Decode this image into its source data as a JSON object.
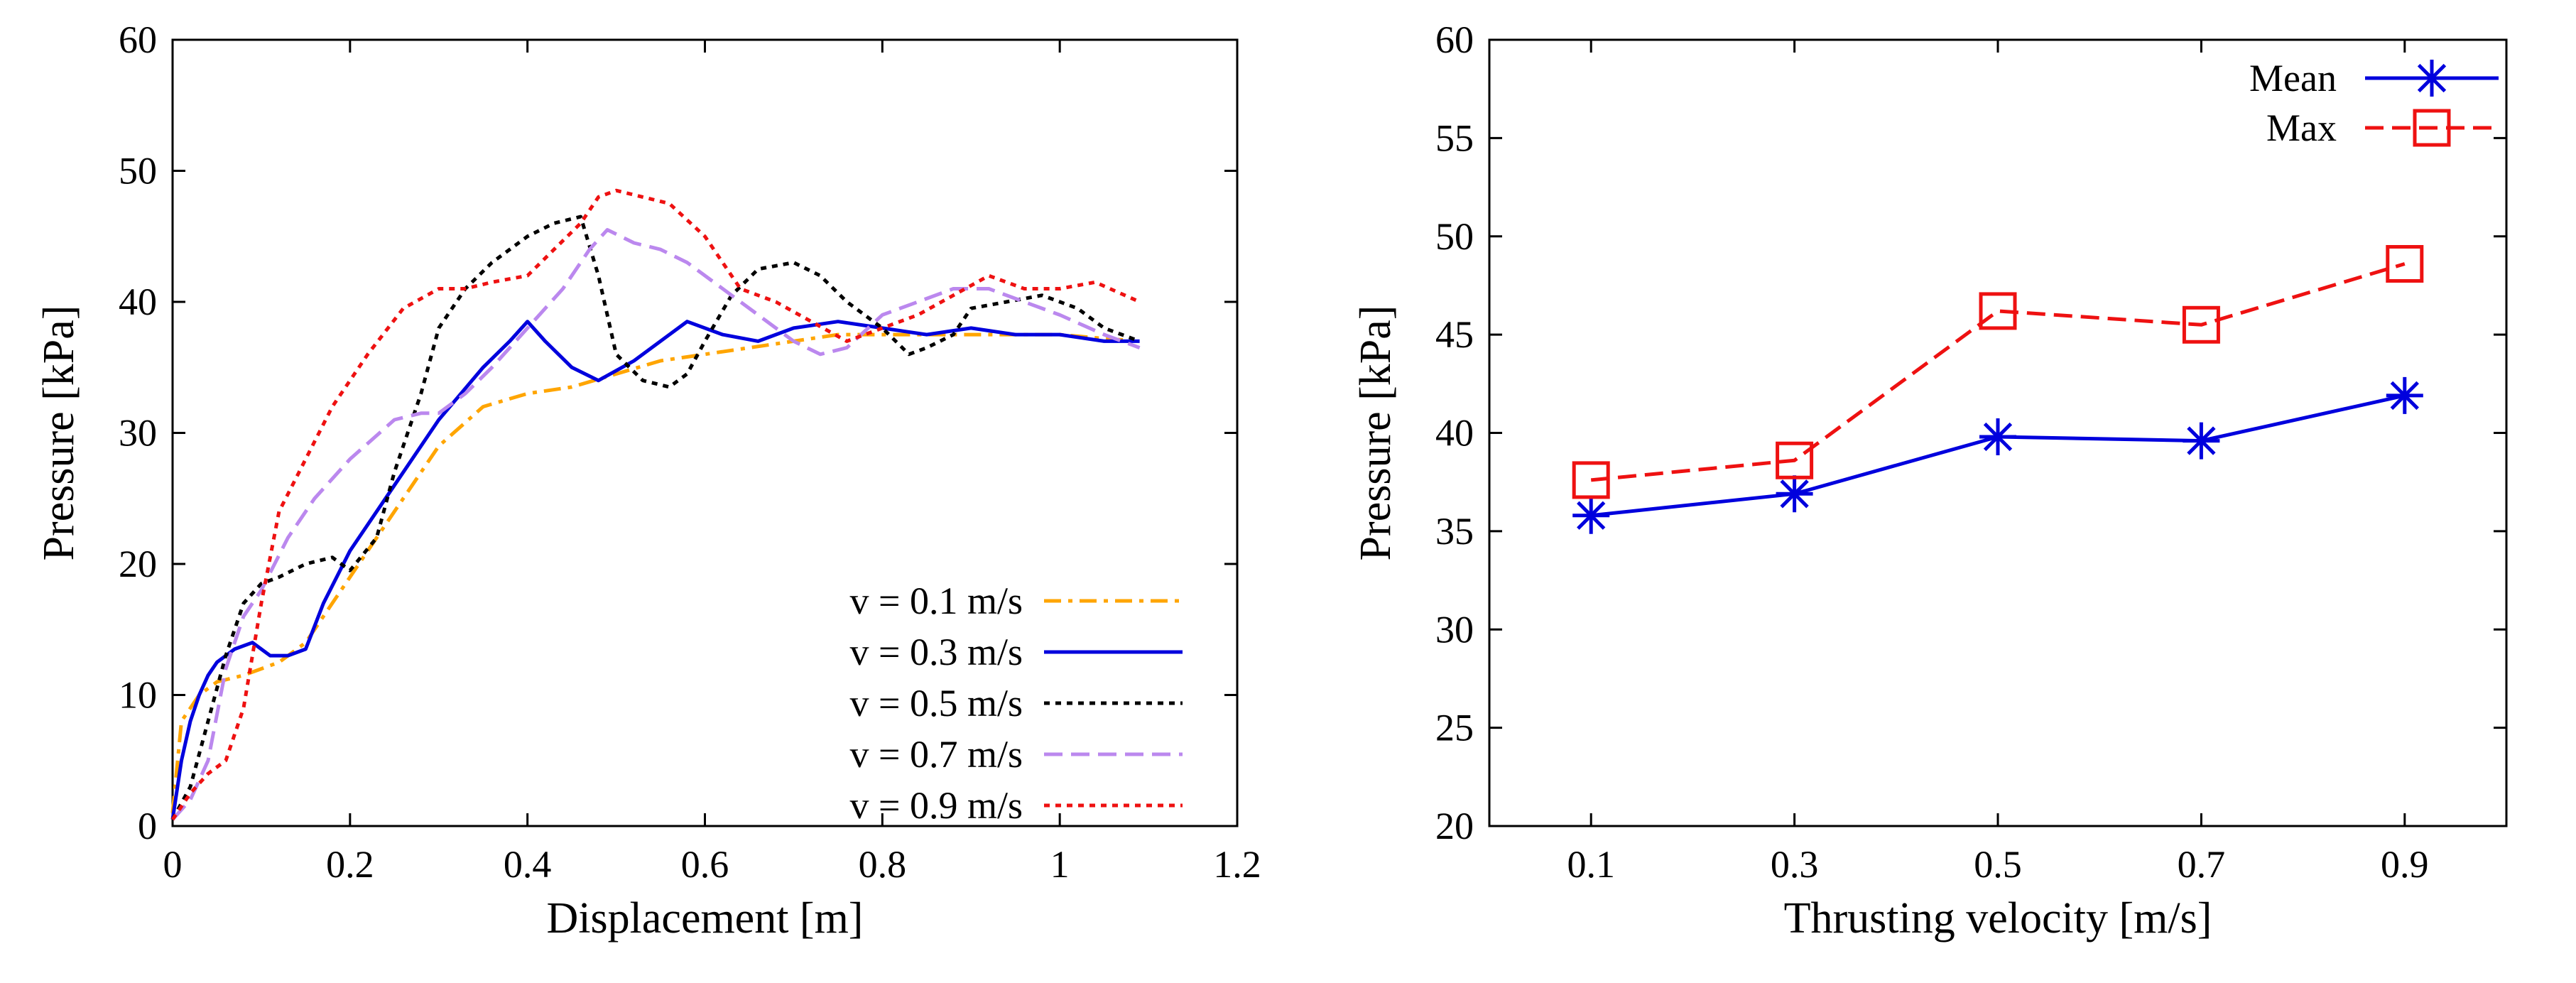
{
  "chart_data": [
    {
      "type": "line",
      "xlabel": "Displacement [m]",
      "ylabel": "Pressure [kPa]",
      "xlim": [
        0,
        1.2
      ],
      "ylim": [
        0,
        60
      ],
      "xticks": [
        0,
        0.2,
        0.4,
        0.6,
        0.8,
        1,
        1.2
      ],
      "xtick_labels": [
        "0",
        "0.2",
        "0.4",
        "0.6",
        "0.8",
        "1",
        "1.2"
      ],
      "yticks": [
        0,
        10,
        20,
        30,
        40,
        50,
        60
      ],
      "ytick_labels": [
        "0",
        "10",
        "20",
        "30",
        "40",
        "50",
        "60"
      ],
      "grid": false,
      "legend_position": "bottom-right",
      "series": [
        {
          "name": "v = 0.1 m/s",
          "color": "#FFA500",
          "dash": "dash-dot",
          "x": [
            0,
            0.01,
            0.03,
            0.05,
            0.08,
            0.1,
            0.12,
            0.15,
            0.2,
            0.25,
            0.3,
            0.35,
            0.4,
            0.45,
            0.5,
            0.55,
            0.6,
            0.65,
            0.7,
            0.75,
            0.8,
            0.85,
            0.9,
            0.95,
            1.0,
            1.05,
            1.09
          ],
          "y": [
            1,
            8,
            10,
            11,
            11.5,
            12,
            12.5,
            14,
            19,
            24,
            29,
            32,
            33,
            33.5,
            34.5,
            35.5,
            36,
            36.5,
            37,
            37.5,
            37.5,
            37.5,
            37.5,
            37.5,
            37.5,
            37.2,
            37
          ]
        },
        {
          "name": "v = 0.3 m/s",
          "color": "#0000DD",
          "dash": "solid",
          "x": [
            0,
            0.01,
            0.02,
            0.03,
            0.04,
            0.05,
            0.07,
            0.09,
            0.11,
            0.13,
            0.15,
            0.17,
            0.2,
            0.25,
            0.3,
            0.35,
            0.38,
            0.4,
            0.42,
            0.45,
            0.48,
            0.52,
            0.56,
            0.58,
            0.62,
            0.66,
            0.7,
            0.75,
            0.8,
            0.85,
            0.9,
            0.95,
            1.0,
            1.05,
            1.09
          ],
          "y": [
            0.5,
            5,
            8,
            10,
            11.5,
            12.5,
            13.5,
            14,
            13,
            13,
            13.5,
            17,
            21,
            26,
            31,
            35,
            37,
            38.5,
            37,
            35,
            34,
            35.5,
            37.5,
            38.5,
            37.5,
            37,
            38,
            38.5,
            38,
            37.5,
            38,
            37.5,
            37.5,
            37,
            37
          ]
        },
        {
          "name": "v = 0.5 m/s",
          "color": "#000000",
          "dash": "dotted",
          "x": [
            0,
            0.02,
            0.04,
            0.06,
            0.08,
            0.1,
            0.12,
            0.15,
            0.18,
            0.2,
            0.23,
            0.25,
            0.28,
            0.3,
            0.33,
            0.36,
            0.4,
            0.43,
            0.46,
            0.48,
            0.5,
            0.53,
            0.56,
            0.58,
            0.6,
            0.63,
            0.66,
            0.7,
            0.73,
            0.76,
            0.8,
            0.83,
            0.85,
            0.88,
            0.9,
            0.94,
            0.98,
            1.02,
            1.05,
            1.09
          ],
          "y": [
            0.5,
            3,
            8,
            13,
            17,
            18.5,
            19,
            20,
            20.5,
            19.5,
            22,
            27,
            33,
            38,
            41,
            43,
            45,
            46,
            46.5,
            42,
            36,
            34,
            33.5,
            34.5,
            37,
            40.5,
            42.5,
            43,
            42,
            40,
            38,
            36,
            36.5,
            37.5,
            39.5,
            40,
            40.5,
            39.5,
            38,
            37
          ]
        },
        {
          "name": "v = 0.7 m/s",
          "color": "#BB88EE",
          "dash": "dashed",
          "x": [
            0,
            0.02,
            0.04,
            0.06,
            0.08,
            0.1,
            0.13,
            0.16,
            0.2,
            0.25,
            0.28,
            0.3,
            0.33,
            0.36,
            0.4,
            0.44,
            0.47,
            0.49,
            0.52,
            0.55,
            0.58,
            0.62,
            0.66,
            0.7,
            0.73,
            0.76,
            0.8,
            0.84,
            0.88,
            0.92,
            0.96,
            1.0,
            1.05,
            1.09
          ],
          "y": [
            0.5,
            2,
            5,
            12,
            16,
            18,
            22,
            25,
            28,
            31,
            31.5,
            31.5,
            33,
            35,
            38,
            41,
            44,
            45.5,
            44.5,
            44,
            43,
            41,
            39,
            37,
            36,
            36.5,
            39,
            40,
            41,
            41,
            40,
            39,
            37.5,
            36.5
          ]
        },
        {
          "name": "v = 0.9 m/s",
          "color": "#EE1111",
          "dash": "dotted",
          "x": [
            0,
            0.02,
            0.04,
            0.06,
            0.08,
            0.1,
            0.12,
            0.15,
            0.18,
            0.22,
            0.26,
            0.3,
            0.33,
            0.36,
            0.4,
            0.43,
            0.46,
            0.48,
            0.5,
            0.53,
            0.56,
            0.6,
            0.64,
            0.68,
            0.72,
            0.76,
            0.8,
            0.84,
            0.88,
            0.92,
            0.96,
            1.0,
            1.04,
            1.09
          ],
          "y": [
            0.5,
            2.5,
            4,
            5,
            9,
            17,
            24,
            28,
            32,
            36,
            39.5,
            41,
            41,
            41.5,
            42,
            44,
            46,
            48,
            48.5,
            48,
            47.5,
            45,
            41,
            40,
            38.5,
            37,
            38,
            39,
            40.5,
            42,
            41,
            41,
            41.5,
            40
          ]
        }
      ]
    },
    {
      "type": "line",
      "xlabel": "Thrusting velocity [m/s]",
      "ylabel": "Pressure [kPa]",
      "xlim": [
        0,
        1.0
      ],
      "ylim": [
        20,
        60
      ],
      "xticks": [
        0.1,
        0.3,
        0.5,
        0.7,
        0.9
      ],
      "xtick_labels": [
        "0.1",
        "0.3",
        "0.5",
        "0.7",
        "0.9"
      ],
      "yticks": [
        20,
        25,
        30,
        35,
        40,
        45,
        50,
        55,
        60
      ],
      "ytick_labels": [
        "20",
        "25",
        "30",
        "35",
        "40",
        "45",
        "50",
        "55",
        "60"
      ],
      "grid": false,
      "legend_position": "top-right",
      "series": [
        {
          "name": "Mean",
          "color": "#0000DD",
          "dash": "solid",
          "marker": "asterisk",
          "x": [
            0.1,
            0.3,
            0.5,
            0.7,
            0.9
          ],
          "y": [
            35.8,
            36.9,
            39.8,
            39.6,
            41.9
          ]
        },
        {
          "name": "Max",
          "color": "#EE1111",
          "dash": "dashed",
          "marker": "square",
          "x": [
            0.1,
            0.3,
            0.5,
            0.7,
            0.9
          ],
          "y": [
            37.6,
            38.6,
            46.2,
            45.5,
            48.6
          ]
        }
      ]
    }
  ]
}
